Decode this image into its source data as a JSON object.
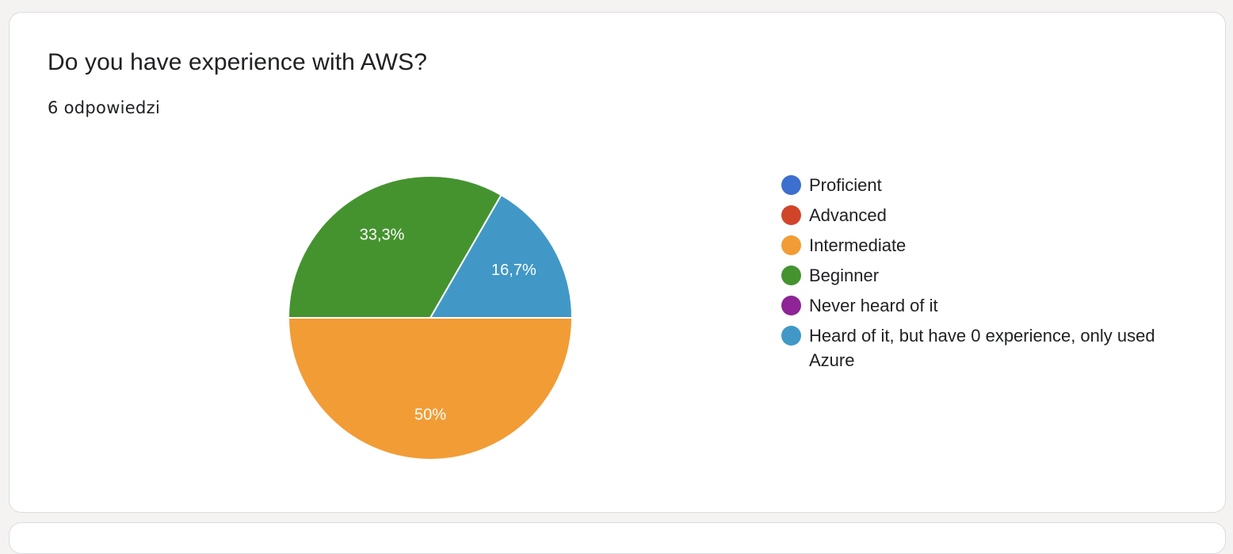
{
  "question": {
    "title": "Do you have experience with AWS?",
    "responses": "6 odpowiedzi"
  },
  "chart_data": {
    "type": "pie",
    "categories": [
      "Proficient",
      "Advanced",
      "Intermediate",
      "Beginner",
      "Never heard of it",
      "Heard of it, but have 0 experience, only used Azure"
    ],
    "values": [
      0,
      0,
      3,
      2,
      0,
      1
    ],
    "percent_labels": [
      "",
      "",
      "50%",
      "33,3%",
      "",
      "16,7%"
    ],
    "colors": [
      "#3d6fce",
      "#d0452a",
      "#f29c36",
      "#45932f",
      "#8e2495",
      "#4198c6"
    ],
    "legend_position": "right",
    "start": "east",
    "direction": "counterclockwise",
    "order": [
      5,
      3,
      2
    ]
  }
}
